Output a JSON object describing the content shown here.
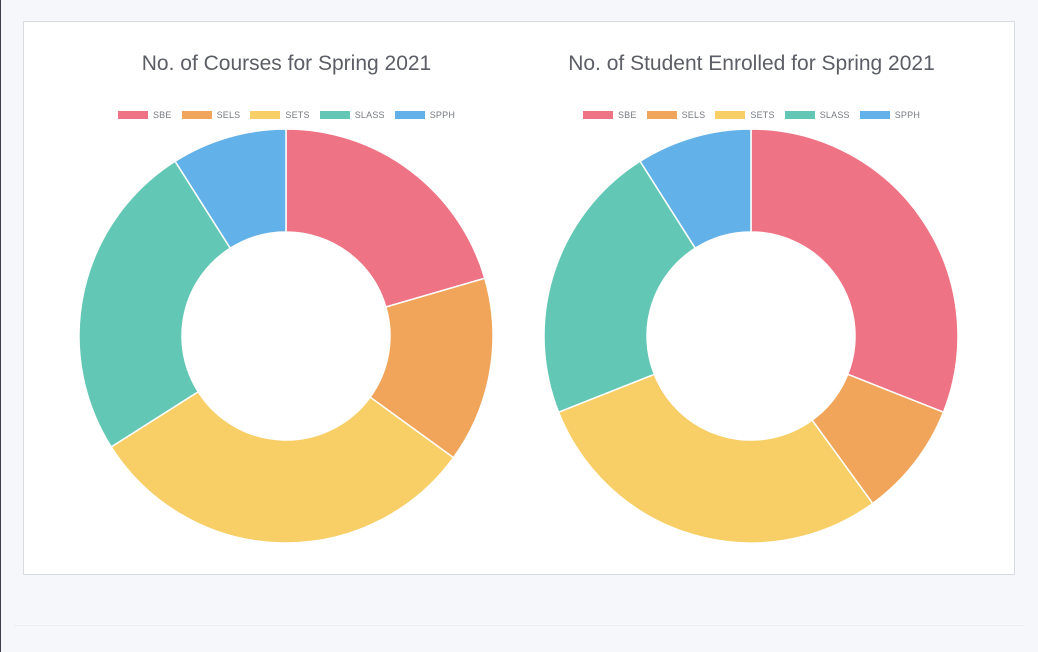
{
  "colors": {
    "SBE": "#ee7385",
    "SELS": "#f0a55a",
    "SETS": "#f7cf66",
    "SLASS": "#62c7b5",
    "SPPH": "#62b1e8"
  },
  "chart_data": [
    {
      "type": "pie",
      "title": "No. of Courses for Spring 2021",
      "categories": [
        "SBE",
        "SELS",
        "SETS",
        "SLASS",
        "SPPH"
      ],
      "values": [
        20.5,
        14.5,
        31,
        25,
        9
      ],
      "legend": "top"
    },
    {
      "type": "pie",
      "title": "No. of Student Enrolled for Spring 2021",
      "categories": [
        "SBE",
        "SELS",
        "SETS",
        "SLASS",
        "SPPH"
      ],
      "values": [
        31,
        9,
        29,
        22,
        9
      ],
      "legend": "top"
    }
  ]
}
